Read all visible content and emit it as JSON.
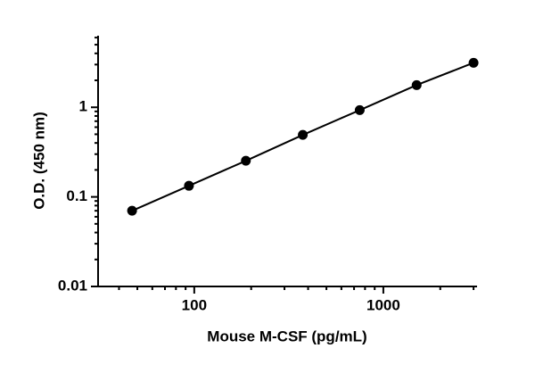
{
  "chart_data": {
    "type": "line",
    "x_label": "Mouse M-CSF (pg/mL)",
    "y_label": "O.D. (450 nm)",
    "x": [
      46.9,
      93.75,
      187.5,
      375,
      750,
      1500,
      3000
    ],
    "values": [
      0.07,
      0.133,
      0.253,
      0.492,
      0.93,
      1.77,
      3.14
    ],
    "color": "#000000",
    "xscale": "log",
    "yscale": "log",
    "xlim": [
      31,
      3130
    ],
    "ylim": [
      0.01,
      6.3
    ],
    "xticks": [
      100,
      1000
    ],
    "yticks": [
      0.01,
      0.1,
      1
    ],
    "xminorticks": [
      40,
      50,
      60,
      70,
      80,
      90,
      200,
      300,
      400,
      500,
      600,
      700,
      800,
      900,
      2000,
      3000
    ],
    "yminorticks": [
      0.02,
      0.03,
      0.04,
      0.05,
      0.06,
      0.07,
      0.08,
      0.09,
      0.2,
      0.3,
      0.4,
      0.5,
      0.6,
      0.7,
      0.8,
      0.9,
      2,
      3,
      4,
      5,
      6
    ],
    "grid": false
  }
}
